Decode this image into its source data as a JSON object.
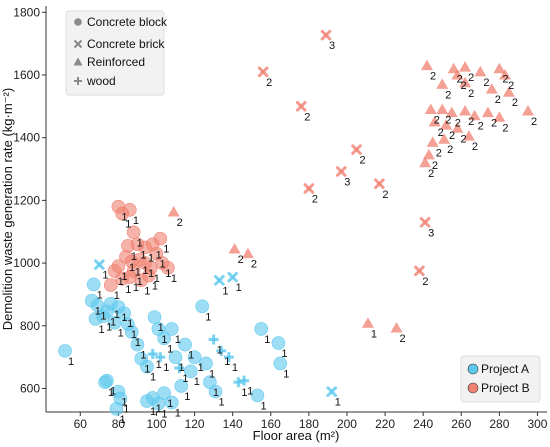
{
  "chart_data": {
    "type": "scatter",
    "xlabel": "Floor area (m²)",
    "ylabel": "Demolition waste generation rate (kg·m⁻²)",
    "xlim": [
      42,
      305
    ],
    "ylim": [
      525,
      1820
    ],
    "xticks": [
      60,
      80,
      100,
      120,
      140,
      160,
      180,
      200,
      220,
      240,
      260,
      280,
      300
    ],
    "yticks": [
      600,
      800,
      1000,
      1200,
      1400,
      1600,
      1800
    ],
    "grid": false,
    "legend_markers": {
      "placement": "top-left",
      "entries": [
        {
          "label": "Concrete block",
          "marker": "circle"
        },
        {
          "label": "Concrete brick",
          "marker": "x"
        },
        {
          "label": "Reinforced",
          "marker": "triangle"
        },
        {
          "label": "wood",
          "marker": "plus"
        }
      ]
    },
    "legend_projects": {
      "placement": "bottom-right",
      "entries": [
        {
          "label": "Project A",
          "color": "#5bc8ee"
        },
        {
          "label": "Project B",
          "color": "#f08070"
        }
      ]
    },
    "colors": {
      "Project A": "#5bc8ee",
      "Project B": "#f08070"
    },
    "series": [
      {
        "project": "Project A",
        "marker": "circle",
        "points": [
          {
            "x": 52,
            "y": 720,
            "label": "1"
          },
          {
            "x": 67,
            "y": 932,
            "label": "1"
          },
          {
            "x": 66,
            "y": 880,
            "label": "1"
          },
          {
            "x": 69,
            "y": 865,
            "label": "1"
          },
          {
            "x": 68,
            "y": 822,
            "label": "1"
          },
          {
            "x": 72,
            "y": 830,
            "label": "1"
          },
          {
            "x": 74,
            "y": 846,
            "label": "1"
          },
          {
            "x": 76,
            "y": 870,
            "label": "1"
          },
          {
            "x": 78,
            "y": 810,
            "label": "1"
          },
          {
            "x": 80,
            "y": 860,
            "label": "1"
          },
          {
            "x": 83,
            "y": 840,
            "label": "1"
          },
          {
            "x": 85,
            "y": 805,
            "label": "1"
          },
          {
            "x": 87,
            "y": 780,
            "label": "1"
          },
          {
            "x": 90,
            "y": 740,
            "label": "1"
          },
          {
            "x": 92,
            "y": 695,
            "label": "1"
          },
          {
            "x": 95,
            "y": 670,
            "label": "1"
          },
          {
            "x": 99,
            "y": 828,
            "label": "1"
          },
          {
            "x": 101,
            "y": 790,
            "label": "1"
          },
          {
            "x": 104,
            "y": 760,
            "label": "1"
          },
          {
            "x": 108,
            "y": 790,
            "label": "1"
          },
          {
            "x": 110,
            "y": 700,
            "label": "1"
          },
          {
            "x": 115,
            "y": 740,
            "label": "1"
          },
          {
            "x": 120,
            "y": 700,
            "label": "1"
          },
          {
            "x": 124,
            "y": 862,
            "label": "1"
          },
          {
            "x": 126,
            "y": 680,
            "label": "1"
          },
          {
            "x": 128,
            "y": 620,
            "label": "1"
          },
          {
            "x": 74,
            "y": 625,
            "label": "1"
          },
          {
            "x": 73,
            "y": 620,
            "label": "1"
          },
          {
            "x": 80,
            "y": 590,
            "label": "1"
          },
          {
            "x": 81,
            "y": 568,
            "label": "1"
          },
          {
            "x": 79,
            "y": 535,
            "label": "1"
          },
          {
            "x": 95,
            "y": 560,
            "label": "1"
          },
          {
            "x": 98,
            "y": 570,
            "label": "1"
          },
          {
            "x": 101,
            "y": 552,
            "label": "1"
          },
          {
            "x": 104,
            "y": 585,
            "label": "1"
          },
          {
            "x": 108,
            "y": 555,
            "label": "1"
          },
          {
            "x": 113,
            "y": 608,
            "label": "1"
          },
          {
            "x": 118,
            "y": 655,
            "label": "1"
          },
          {
            "x": 131,
            "y": 590,
            "label": "1"
          },
          {
            "x": 153,
            "y": 578,
            "label": "1"
          },
          {
            "x": 155,
            "y": 790,
            "label": "1"
          },
          {
            "x": 164,
            "y": 745,
            "label": "1"
          },
          {
            "x": 165,
            "y": 680,
            "label": "1"
          }
        ]
      },
      {
        "project": "Project B",
        "marker": "circle",
        "points": [
          {
            "x": 80,
            "y": 1180,
            "label": "1"
          },
          {
            "x": 82,
            "y": 1158,
            "label": "1"
          },
          {
            "x": 86,
            "y": 1170,
            "label": "1"
          },
          {
            "x": 88,
            "y": 1098,
            "label": "1"
          },
          {
            "x": 85,
            "y": 1055,
            "label": "1"
          },
          {
            "x": 90,
            "y": 1060,
            "label": "1"
          },
          {
            "x": 94,
            "y": 1050,
            "label": "1"
          },
          {
            "x": 98,
            "y": 1060,
            "label": "1"
          },
          {
            "x": 102,
            "y": 1078,
            "label": "1"
          },
          {
            "x": 100,
            "y": 1030,
            "label": "1"
          },
          {
            "x": 84,
            "y": 1020,
            "label": "1"
          },
          {
            "x": 87,
            "y": 1005,
            "label": "1"
          },
          {
            "x": 91,
            "y": 1010,
            "label": "1"
          },
          {
            "x": 94,
            "y": 1000,
            "label": "1"
          },
          {
            "x": 97,
            "y": 985,
            "label": "1"
          },
          {
            "x": 80,
            "y": 990,
            "label": "1"
          },
          {
            "x": 78,
            "y": 975,
            "label": "1"
          },
          {
            "x": 88,
            "y": 975,
            "label": "1"
          },
          {
            "x": 103,
            "y": 1000,
            "label": "1"
          },
          {
            "x": 106,
            "y": 985,
            "label": "1"
          },
          {
            "x": 76,
            "y": 930,
            "label": "1"
          },
          {
            "x": 82,
            "y": 950,
            "label": "1"
          },
          {
            "x": 86,
            "y": 955,
            "label": "1"
          },
          {
            "x": 92,
            "y": 945,
            "label": "1"
          },
          {
            "x": 96,
            "y": 960,
            "label": "1"
          }
        ]
      },
      {
        "project": "Project A",
        "marker": "x",
        "points": [
          {
            "x": 70,
            "y": 995,
            "label": "1"
          },
          {
            "x": 133,
            "y": 945,
            "label": "1"
          },
          {
            "x": 140,
            "y": 955,
            "label": "1"
          },
          {
            "x": 192,
            "y": 590,
            "label": "1"
          }
        ]
      },
      {
        "project": "Project B",
        "marker": "x",
        "points": [
          {
            "x": 156,
            "y": 1610,
            "label": "2"
          },
          {
            "x": 176,
            "y": 1500,
            "label": "2"
          },
          {
            "x": 189,
            "y": 1727,
            "label": "3"
          },
          {
            "x": 180,
            "y": 1238,
            "label": "2"
          },
          {
            "x": 197,
            "y": 1292,
            "label": "3"
          },
          {
            "x": 205,
            "y": 1362,
            "label": "2"
          },
          {
            "x": 217,
            "y": 1253,
            "label": "2"
          },
          {
            "x": 241,
            "y": 1130,
            "label": "3"
          },
          {
            "x": 238,
            "y": 975,
            "label": "2"
          }
        ]
      },
      {
        "project": "Project A",
        "marker": "plus",
        "points": [
          {
            "x": 98,
            "y": 710,
            "label": "1"
          },
          {
            "x": 102,
            "y": 700,
            "label": "1"
          },
          {
            "x": 112,
            "y": 665,
            "label": "1"
          },
          {
            "x": 130,
            "y": 756,
            "label": "1"
          },
          {
            "x": 134,
            "y": 720,
            "label": "1"
          },
          {
            "x": 138,
            "y": 700,
            "label": "1"
          },
          {
            "x": 143,
            "y": 620,
            "label": "1"
          },
          {
            "x": 146,
            "y": 625,
            "label": "1"
          }
        ]
      },
      {
        "project": "Project B",
        "marker": "triangle",
        "points": [
          {
            "x": 109,
            "y": 1163,
            "label": "2"
          },
          {
            "x": 141,
            "y": 1045,
            "label": "2"
          },
          {
            "x": 148,
            "y": 1030,
            "label": "2"
          },
          {
            "x": 211,
            "y": 808,
            "label": "1"
          },
          {
            "x": 226,
            "y": 793,
            "label": "2"
          },
          {
            "x": 242,
            "y": 1630,
            "label": "2"
          },
          {
            "x": 256,
            "y": 1620,
            "label": "2"
          },
          {
            "x": 262,
            "y": 1625,
            "label": "2"
          },
          {
            "x": 270,
            "y": 1610,
            "label": "2"
          },
          {
            "x": 280,
            "y": 1620,
            "label": "2"
          },
          {
            "x": 283,
            "y": 1600,
            "label": "2"
          },
          {
            "x": 258,
            "y": 1600,
            "label": "2"
          },
          {
            "x": 250,
            "y": 1570,
            "label": "2"
          },
          {
            "x": 262,
            "y": 1575,
            "label": "2"
          },
          {
            "x": 276,
            "y": 1555,
            "label": "2"
          },
          {
            "x": 285,
            "y": 1545,
            "label": "2"
          },
          {
            "x": 244,
            "y": 1490,
            "label": "2"
          },
          {
            "x": 250,
            "y": 1490,
            "label": "2"
          },
          {
            "x": 255,
            "y": 1480,
            "label": "2"
          },
          {
            "x": 262,
            "y": 1485,
            "label": "2"
          },
          {
            "x": 267,
            "y": 1470,
            "label": "2"
          },
          {
            "x": 274,
            "y": 1480,
            "label": "2"
          },
          {
            "x": 280,
            "y": 1465,
            "label": "2"
          },
          {
            "x": 295,
            "y": 1485,
            "label": "2"
          },
          {
            "x": 246,
            "y": 1450,
            "label": "2"
          },
          {
            "x": 252,
            "y": 1440,
            "label": "2"
          },
          {
            "x": 258,
            "y": 1430,
            "label": "2"
          },
          {
            "x": 245,
            "y": 1385,
            "label": "2"
          },
          {
            "x": 251,
            "y": 1395,
            "label": "2"
          },
          {
            "x": 264,
            "y": 1405,
            "label": "2"
          },
          {
            "x": 243,
            "y": 1345,
            "label": "2"
          },
          {
            "x": 241,
            "y": 1320,
            "label": "2"
          }
        ]
      }
    ]
  }
}
